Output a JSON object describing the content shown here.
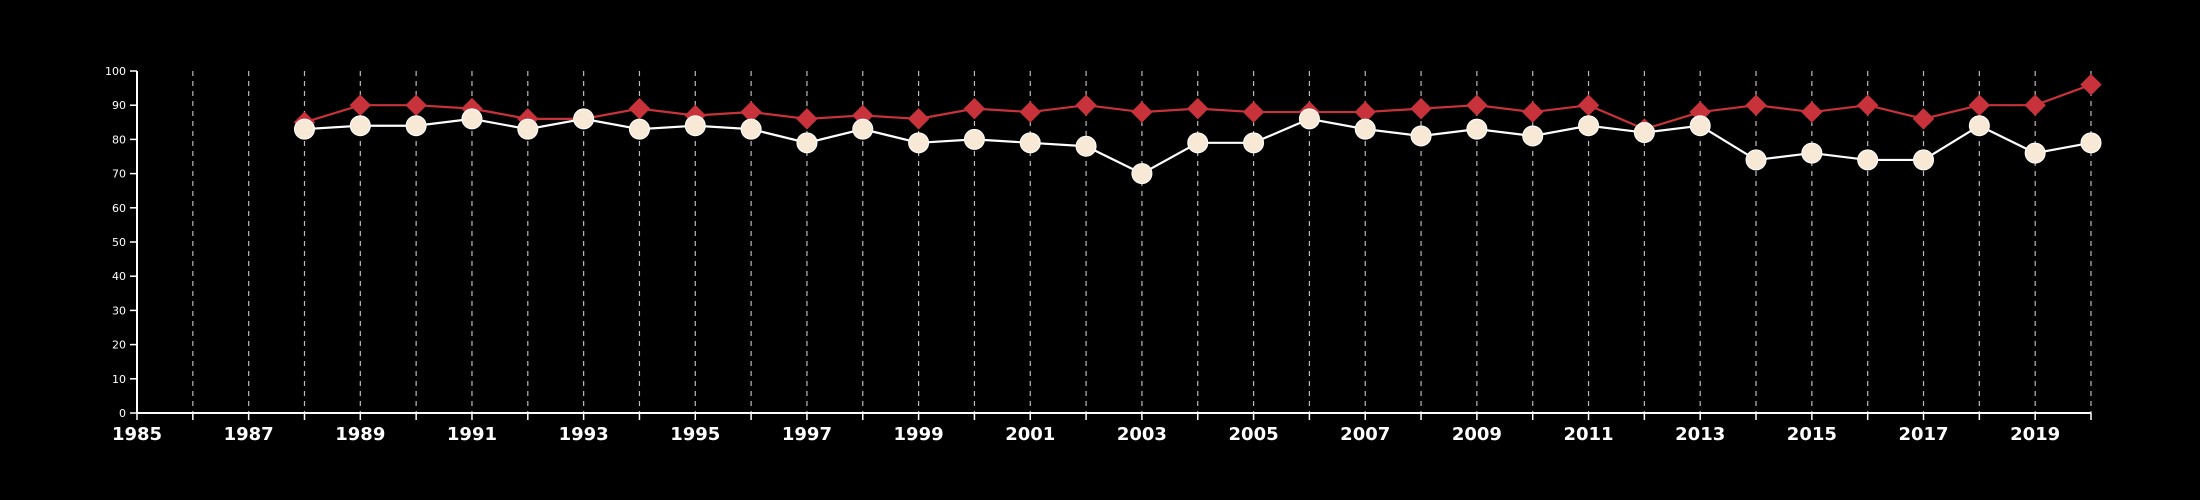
{
  "chart_data": {
    "type": "line",
    "title": "",
    "xlabel": "",
    "ylabel": "",
    "xlim": [
      1985,
      2020
    ],
    "ylim": [
      0,
      100
    ],
    "y_ticks": [
      0,
      10,
      20,
      30,
      40,
      50,
      60,
      70,
      80,
      90,
      100
    ],
    "x_tick_labels": [
      1985,
      1987,
      1989,
      1991,
      1993,
      1995,
      1997,
      1999,
      2001,
      2003,
      2005,
      2007,
      2009,
      2011,
      2013,
      2015,
      2017,
      2019
    ],
    "vertical_gridlines": "dashed, every year",
    "legend": "none",
    "x": [
      1988,
      1989,
      1990,
      1991,
      1992,
      1993,
      1994,
      1995,
      1996,
      1997,
      1998,
      1999,
      2000,
      2001,
      2002,
      2003,
      2004,
      2005,
      2006,
      2007,
      2008,
      2009,
      2010,
      2011,
      2012,
      2013,
      2014,
      2015,
      2016,
      2017,
      2018,
      2019,
      2020
    ],
    "series": [
      {
        "marker": "circle",
        "line_color": "#ffffff",
        "marker_color": "#f7e9d6",
        "values": [
          83,
          84,
          84,
          86,
          83,
          86,
          83,
          84,
          83,
          79,
          83,
          79,
          80,
          79,
          78,
          70,
          79,
          79,
          86,
          83,
          81,
          83,
          81,
          84,
          82,
          84,
          74,
          76,
          74,
          74,
          84,
          76,
          79
        ]
      },
      {
        "marker": "diamond",
        "line_color": "#c8323a",
        "marker_color": "#c8323a",
        "values": [
          85,
          90,
          90,
          89,
          86,
          86,
          89,
          87,
          88,
          86,
          87,
          86,
          89,
          88,
          90,
          88,
          89,
          88,
          88,
          88,
          89,
          90,
          88,
          90,
          83,
          88,
          90,
          88,
          90,
          86,
          90,
          90,
          96
        ]
      }
    ],
    "colors": {
      "background": "#000000",
      "axis": "#ffffff",
      "grid": "#bbbbbb"
    }
  }
}
